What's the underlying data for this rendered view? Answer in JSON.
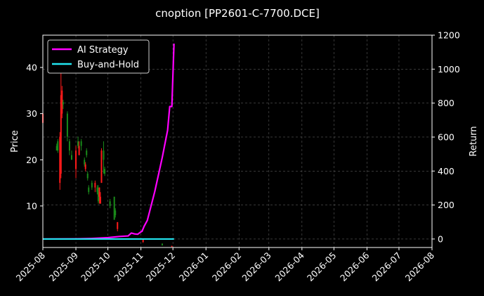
{
  "chart_data": {
    "type": "candlestick+line",
    "title": "cnoption [PP2601-C-7700.DCE]",
    "ylabel": "Price",
    "y2label": "Return",
    "ylim": [
      1,
      47
    ],
    "y2lim": [
      -50,
      1200
    ],
    "y_ticks": [
      10,
      20,
      30,
      40
    ],
    "y2_ticks": [
      0,
      200,
      400,
      600,
      800,
      1000,
      1200
    ],
    "x_ticks": [
      "2025-08",
      "2025-09",
      "2025-10",
      "2025-11",
      "2025-12",
      "2026-01",
      "2026-02",
      "2026-03",
      "2026-04",
      "2026-05",
      "2026-06",
      "2026-07",
      "2026-08"
    ],
    "x_range": [
      "2025-08-01",
      "2026-08-01"
    ],
    "grid": true,
    "legend_position": "top-left",
    "colors": {
      "background": "#000000",
      "up": "#1a8a1a",
      "down": "#ff1a1a",
      "strategy": "#ff00ff",
      "buy_hold": "#22e5f0",
      "grid": "#5a5a5a"
    },
    "series": [
      {
        "name": "AI Strategy",
        "axis": "right",
        "points": [
          [
            "2025-08-01",
            0
          ],
          [
            "2025-09-01",
            1
          ],
          [
            "2025-09-15",
            3
          ],
          [
            "2025-10-01",
            8
          ],
          [
            "2025-10-12",
            15
          ],
          [
            "2025-10-20",
            18
          ],
          [
            "2025-10-23",
            35
          ],
          [
            "2025-10-26",
            30
          ],
          [
            "2025-10-29",
            28
          ],
          [
            "2025-11-01",
            42
          ],
          [
            "2025-11-02",
            45
          ],
          [
            "2025-11-04",
            75
          ],
          [
            "2025-11-07",
            110
          ],
          [
            "2025-11-14",
            280
          ],
          [
            "2025-11-21",
            480
          ],
          [
            "2025-11-26",
            640
          ],
          [
            "2025-11-28",
            780
          ],
          [
            "2025-11-30",
            780
          ],
          [
            "2025-12-02",
            1150
          ]
        ]
      },
      {
        "name": "Buy-and-Hold",
        "axis": "right",
        "points": [
          [
            "2025-08-01",
            0
          ],
          [
            "2025-12-02",
            0
          ]
        ]
      }
    ],
    "candles": [
      {
        "date": "2025-08-01",
        "open": 30,
        "close": 28,
        "high": 31,
        "low": 27
      },
      {
        "date": "2025-08-14",
        "open": 22,
        "close": 23,
        "high": 23.5,
        "low": 22
      },
      {
        "date": "2025-08-15",
        "open": 22,
        "close": 24,
        "high": 24.5,
        "low": 21.5
      },
      {
        "date": "2025-08-17",
        "open": 25,
        "close": 15,
        "high": 26,
        "low": 13.5
      },
      {
        "date": "2025-08-18",
        "open": 34,
        "close": 17,
        "high": 40,
        "low": 16
      },
      {
        "date": "2025-08-19",
        "open": 35,
        "close": 30,
        "high": 36,
        "low": 29
      },
      {
        "date": "2025-08-20",
        "open": 32,
        "close": 32.5,
        "high": 33,
        "low": 31
      },
      {
        "date": "2025-08-24",
        "open": 25,
        "close": 30,
        "high": 30.5,
        "low": 24
      },
      {
        "date": "2025-08-26",
        "open": 22,
        "close": 24,
        "high": 24.5,
        "low": 21
      },
      {
        "date": "2025-08-28",
        "open": 20,
        "close": 21,
        "high": 22,
        "low": 20
      },
      {
        "date": "2025-09-01",
        "open": 22,
        "close": 18,
        "high": 23,
        "low": 16
      },
      {
        "date": "2025-09-03",
        "open": 23,
        "close": 24,
        "high": 25,
        "low": 22.5
      },
      {
        "date": "2025-09-04",
        "open": 23,
        "close": 21,
        "high": 24,
        "low": 21
      },
      {
        "date": "2025-09-06",
        "open": 23,
        "close": 24,
        "high": 24.5,
        "low": 22
      },
      {
        "date": "2025-09-09",
        "open": 19,
        "close": 20,
        "high": 20.5,
        "low": 18.5
      },
      {
        "date": "2025-09-10",
        "open": 19,
        "close": 18,
        "high": 19.5,
        "low": 17.5
      },
      {
        "date": "2025-09-11",
        "open": 21,
        "close": 22,
        "high": 22.5,
        "low": 20.5
      },
      {
        "date": "2025-09-12",
        "open": 16,
        "close": 17,
        "high": 17.5,
        "low": 15.5
      },
      {
        "date": "2025-09-13",
        "open": 13,
        "close": 14,
        "high": 14.5,
        "low": 12.5
      },
      {
        "date": "2025-09-16",
        "open": 14,
        "close": 15,
        "high": 15.5,
        "low": 13.5
      },
      {
        "date": "2025-09-19",
        "open": 15,
        "close": 14,
        "high": 15.5,
        "low": 13
      },
      {
        "date": "2025-09-21",
        "open": 13,
        "close": 14,
        "high": 14.5,
        "low": 12.5
      },
      {
        "date": "2025-09-22",
        "open": 11,
        "close": 13,
        "high": 14.5,
        "low": 10.5
      },
      {
        "date": "2025-09-23",
        "open": 14,
        "close": 12,
        "high": 14,
        "low": 10.5
      },
      {
        "date": "2025-09-24",
        "open": 12,
        "close": 10.5,
        "high": 13,
        "low": 10.5
      },
      {
        "date": "2025-09-25",
        "open": 22,
        "close": 15,
        "high": 22.5,
        "low": 15
      },
      {
        "date": "2025-09-27",
        "open": 20,
        "close": 22,
        "high": 24,
        "low": 17
      },
      {
        "date": "2025-09-28",
        "open": 17,
        "close": 18,
        "high": 18.5,
        "low": 16.5
      },
      {
        "date": "2025-10-03",
        "open": 10,
        "close": 11,
        "high": 11.5,
        "low": 9.5
      },
      {
        "date": "2025-10-07",
        "open": 7,
        "close": 12,
        "high": 12,
        "low": 7
      },
      {
        "date": "2025-10-08",
        "open": 8,
        "close": 9,
        "high": 9.5,
        "low": 7.5
      },
      {
        "date": "2025-10-10",
        "open": 6.5,
        "close": 5,
        "high": 6.5,
        "low": 4.5
      },
      {
        "date": "2025-11-01",
        "open": 2.7,
        "close": 2.9,
        "high": 3,
        "low": 2.6
      },
      {
        "date": "2025-11-03",
        "open": 2.8,
        "close": 2.2,
        "high": 2.8,
        "low": 2
      },
      {
        "date": "2025-11-21",
        "open": 1.5,
        "close": 1.8,
        "high": 1.9,
        "low": 1.4
      },
      {
        "date": "2025-11-30",
        "open": 1.3,
        "close": 1.2,
        "high": 1.4,
        "low": 1.1
      }
    ]
  }
}
